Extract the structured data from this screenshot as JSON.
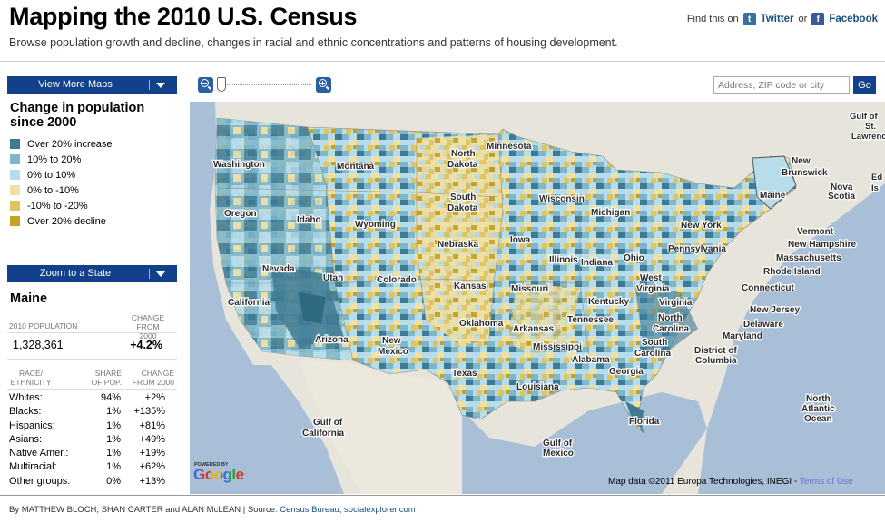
{
  "header": {
    "title": "Mapping the 2010 U.S. Census",
    "subtitle": "Browse population growth and decline, changes in racial and ethnic concentrations and patterns of housing development.",
    "find_text": "Find this on",
    "twitter": "Twitter",
    "or_text": "or",
    "facebook": "Facebook"
  },
  "sidebar": {
    "view_more_maps": "View More Maps",
    "legend_title": "Change in population since 2000",
    "legend": [
      {
        "label": "Over 20% increase",
        "color": "#3f7a94"
      },
      {
        "label": "10% to 20%",
        "color": "#7fb6c9"
      },
      {
        "label": "0% to 10%",
        "color": "#b7dcea"
      },
      {
        "label": "0% to -10%",
        "color": "#f0e0a4"
      },
      {
        "label": "-10% to -20%",
        "color": "#e2c45a"
      },
      {
        "label": "Over 20% decline",
        "color": "#c8a21c"
      }
    ],
    "zoom_to_state": "Zoom to a State",
    "state": {
      "name": "Maine",
      "pop_label": "2010 POPULATION",
      "change_label_1": "CHANGE",
      "change_label_2": "FROM 2000",
      "population": "1,328,361",
      "change": "+4.2%",
      "race_label_1": "RACE/",
      "race_label_2": "ETHNICITY",
      "share_label_1": "SHARE",
      "share_label_2": "OF POP.",
      "rchange_label_1": "CHANGE",
      "rchange_label_2": "FROM 2000",
      "races": [
        {
          "name": "Whites:",
          "share": "94%",
          "change": "+2%"
        },
        {
          "name": "Blacks:",
          "share": "1%",
          "change": "+135%"
        },
        {
          "name": "Hispanics:",
          "share": "1%",
          "change": "+81%"
        },
        {
          "name": "Asians:",
          "share": "1%",
          "change": "+49%"
        },
        {
          "name": "Native Amer.:",
          "share": "1%",
          "change": "+19%"
        },
        {
          "name": "Multiracial:",
          "share": "1%",
          "change": "+62%"
        },
        {
          "name": "Other groups:",
          "share": "0%",
          "change": "+13%"
        }
      ]
    }
  },
  "map": {
    "search_placeholder": "Address, ZIP code or city",
    "go_label": "Go",
    "powered_by": "POWERED BY",
    "google": "Google",
    "attribution": "Map data ©2011  Europa Technologies, INEGI - ",
    "terms": "Terms of Use",
    "labels": {
      "washington": "Washington",
      "montana": "Montana",
      "north": "North",
      "dakota": "Dakota",
      "minnesota": "Minnesota",
      "oregon": "Oregon",
      "idaho": "Idaho",
      "wyoming": "Wyoming",
      "south": "South",
      "wisconsin": "Wisconsin",
      "michigan": "Michigan",
      "nevada": "Nevada",
      "utah": "Utah",
      "nebraska": "Nebraska",
      "iowa": "Iowa",
      "california": "California",
      "colorado": "Colorado",
      "kansas": "Kansas",
      "missouri": "Missouri",
      "illinois": "Illinois",
      "indiana": "Indiana",
      "ohio": "Ohio",
      "arizona": "Arizona",
      "new": "New",
      "mexico": "Mexico",
      "oklahoma": "Oklahoma",
      "arkansas": "Arkansas",
      "tennessee": "Tennessee",
      "kentucky": "Kentucky",
      "west": "West",
      "virginia": "Virginia",
      "texas": "Texas",
      "mississippi": "Mississippi",
      "alabama": "Alabama",
      "georgia": "Georgia",
      "louisiana": "Louisiana",
      "florida": "Florida",
      "carolina": "Carolina",
      "maine": "Maine",
      "new_york": "New York",
      "pennsylvania": "Pennsylvania",
      "new_brunswick_1": "New",
      "new_brunswick_2": "Brunswick",
      "nova_scotia_1": "Nova",
      "nova_scotia_2": "Scotia",
      "gulf_st_l_1": "Gulf of",
      "gulf_st_l_2": "St.",
      "gulf_st_l_3": "Lawrence",
      "pei": "Ed",
      "pei2": "Is",
      "vermont": "Vermont",
      "new_hampshire": "New Hampshire",
      "massachusetts": "Massachusetts",
      "rhode_island": "Rhode Island",
      "connecticut": "Connecticut",
      "new_jersey": "New Jersey",
      "delaware": "Delaware",
      "maryland": "Maryland",
      "district_1": "District of",
      "district_2": "Columbia",
      "gulf_cal_1": "Gulf of",
      "gulf_cal_2": "California",
      "gulf_mex_1": "Gulf of",
      "gulf_mex_2": "Mexico",
      "atlantic_1": "North",
      "atlantic_2": "Atlantic",
      "atlantic_3": "Ocean"
    }
  },
  "footer": {
    "byline": "By MATTHEW BLOCH, SHAN CARTER and ALAN McLEAN | Source: ",
    "source1": "Census Bureau",
    "sep": "; ",
    "source2": "socialexplorer.com"
  }
}
